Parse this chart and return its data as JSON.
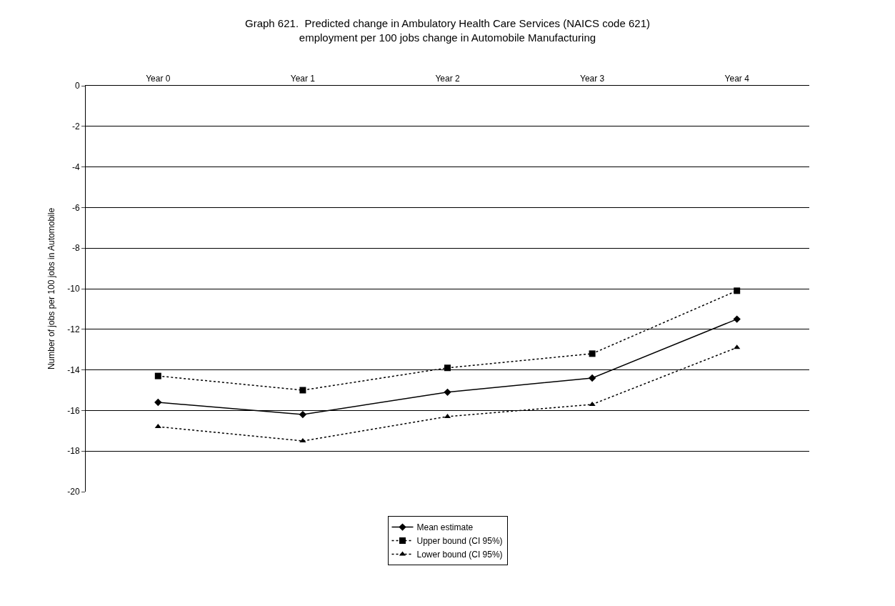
{
  "chart_data": {
    "type": "line",
    "title": "Graph 621.  Predicted change in Ambulatory Health Care Services (NAICS code 621)\nemployment per 100 jobs change in Automobile Manufacturing",
    "ylabel": "Number of jobs per 100 jobs in Automobile",
    "categories": [
      "Year 0",
      "Year 1",
      "Year 2",
      "Year 3",
      "Year 4"
    ],
    "series": [
      {
        "name": "Mean estimate",
        "color": "#000000",
        "marker": "diamond",
        "line_style": "solid",
        "values": [
          -15.6,
          -16.2,
          -15.1,
          -14.4,
          -11.5
        ]
      },
      {
        "name": "Upper bound (CI 95%)",
        "color": "#000000",
        "marker": "square",
        "line_style": "dotted",
        "values": [
          -14.3,
          -15.0,
          -13.9,
          -13.2,
          -10.1
        ]
      },
      {
        "name": "Lower bound (CI 95%)",
        "color": "#000000",
        "marker": "triangle",
        "line_style": "dotted",
        "values": [
          -16.8,
          -17.5,
          -16.3,
          -15.7,
          -12.9
        ]
      }
    ],
    "ylim": [
      -20,
      0
    ],
    "yticks": [
      0,
      -2,
      -4,
      -6,
      -8,
      -10,
      -12,
      -14,
      -16,
      -18,
      -20
    ],
    "grid": "y",
    "legend": "bottom"
  }
}
